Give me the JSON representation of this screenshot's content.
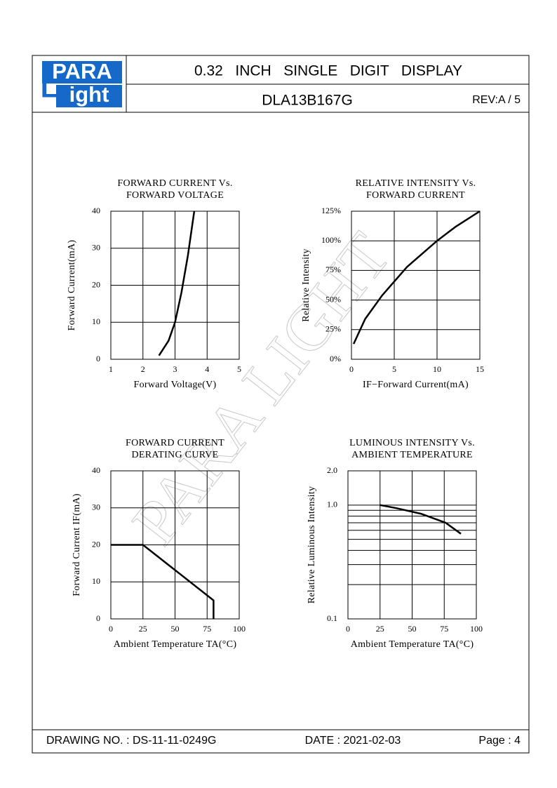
{
  "header": {
    "logo_top": "PARA",
    "logo_letter": "L",
    "logo_bottom": "ight",
    "title": "0.32   INCH   SINGLE   DIGIT   DISPLAY",
    "part_number": "DLA13B167G",
    "revision": "REV:A / 5"
  },
  "watermark": "PARA LIGHT",
  "footer": {
    "drawing_no": "DRAWING NO. : DS-11-11-0249G",
    "date": "DATE : 2021-02-03",
    "page": "Page : 4"
  },
  "chart_data": [
    {
      "type": "line",
      "title": [
        "FORWARD  CURRENT  Vs.",
        "FORWARD  VOLTAGE"
      ],
      "x_label": "Forward  Voltage(V)",
      "y_label": "Forward  Current(mA)",
      "x": [
        2.5,
        2.8,
        3.0,
        3.2,
        3.4,
        3.6
      ],
      "values": [
        1,
        5,
        10,
        18,
        28,
        40
      ],
      "color": "#000000",
      "xlim": [
        1,
        5
      ],
      "xticks": [
        1,
        2,
        3,
        4,
        5
      ],
      "ylim": [
        0,
        40
      ],
      "yticks": [
        0,
        10,
        20,
        30,
        40
      ],
      "grid": true
    },
    {
      "type": "line",
      "title": [
        "RELATIVE  INTENSITY  Vs.",
        "FORWARD  CURRENT"
      ],
      "x_label": "IF−Forward  Current(mA)",
      "y_label": "Relative  Intensity",
      "x": [
        0.25,
        1.6,
        3.6,
        6.5,
        10,
        12.2,
        15
      ],
      "values": [
        13,
        34,
        54,
        78,
        100,
        112,
        125
      ],
      "color": "#000000",
      "xlim": [
        0,
        15
      ],
      "xticks": [
        0,
        5,
        10,
        15
      ],
      "ylim": [
        0,
        125
      ],
      "yticks": [
        {
          "value": 0,
          "label": "0%"
        },
        {
          "value": 25,
          "label": "25%"
        },
        {
          "value": 50,
          "label": "50%"
        },
        {
          "value": 75,
          "label": "75%"
        },
        {
          "value": 100,
          "label": "100%"
        },
        {
          "value": 125,
          "label": "125%"
        }
      ],
      "grid": true
    },
    {
      "type": "line",
      "title": [
        "FORWARD  CURRENT",
        "DERATING  CURVE"
      ],
      "x_label": "Ambient  Temperature  TA(°C)",
      "y_label": "Forward  Current  IF(mA)",
      "x": [
        0,
        25,
        80,
        80
      ],
      "values": [
        20,
        20,
        5,
        0
      ],
      "color": "#000000",
      "xlim": [
        0,
        100
      ],
      "xticks": [
        0,
        25,
        50,
        75,
        100
      ],
      "ylim": [
        0,
        40
      ],
      "yticks": [
        0,
        10,
        20,
        30,
        40
      ],
      "grid": true
    },
    {
      "type": "line",
      "title": [
        "LUMINOUS  INTENSITY  Vs.",
        "AMBIENT  TEMPERATURE"
      ],
      "x_label": "Ambient  Temperature  TA(°C)",
      "y_label": "Relative  Luminous  Intensity",
      "x": [
        25,
        37.7,
        56.8,
        76,
        88
      ],
      "values": [
        1.0,
        0.94,
        0.84,
        0.7,
        0.56
      ],
      "color": "#000000",
      "xlim": [
        0,
        100
      ],
      "xticks": [
        0,
        25,
        50,
        75,
        100
      ],
      "ylim": [
        0.1,
        2
      ],
      "log_y": true,
      "yticks": [
        {
          "value": 2,
          "label": "2.0"
        },
        {
          "value": 1,
          "label": "1.0"
        },
        0.1
      ],
      "minor_yticks": [
        0.2,
        0.3,
        0.4,
        0.5,
        0.6,
        0.7,
        0.8,
        0.9
      ],
      "grid": true
    }
  ]
}
